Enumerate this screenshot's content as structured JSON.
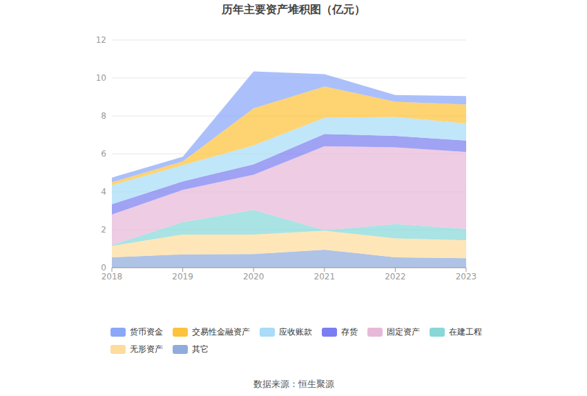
{
  "chart_data": {
    "type": "area",
    "title": "历年主要资产堆积图（亿元）",
    "source": "数据来源：恒生聚源",
    "stacked": true,
    "grid": true,
    "legend": "bottom",
    "categories": [
      "2018",
      "2019",
      "2020",
      "2021",
      "2022",
      "2023"
    ],
    "ylim": [
      0,
      12
    ],
    "yticks": [
      0,
      2,
      4,
      6,
      8,
      10,
      12
    ],
    "series": [
      {
        "name": "货币资金",
        "color": "#8aa8f8",
        "values": [
          0.25,
          0.25,
          1.95,
          0.65,
          0.35,
          0.45
        ]
      },
      {
        "name": "交易性金融资产",
        "color": "#fdc33c",
        "values": [
          0.15,
          0.2,
          1.95,
          1.65,
          0.8,
          1.0
        ]
      },
      {
        "name": "应收账款",
        "color": "#a8dcf8",
        "values": [
          1.0,
          0.85,
          1.0,
          0.85,
          1.0,
          0.9
        ]
      },
      {
        "name": "存货",
        "color": "#7b7ef0",
        "values": [
          0.55,
          0.45,
          0.55,
          0.65,
          0.6,
          0.6
        ]
      },
      {
        "name": "固定资产",
        "color": "#e8b8d8",
        "values": [
          1.6,
          1.7,
          1.85,
          4.43,
          4.05,
          4.05
        ]
      },
      {
        "name": "在建工程",
        "color": "#88d8d8",
        "values": [
          0.05,
          0.65,
          1.3,
          0.02,
          0.75,
          0.6
        ]
      },
      {
        "name": "无形资产",
        "color": "#fddc9c",
        "values": [
          0.6,
          1.05,
          1.03,
          1.0,
          1.0,
          0.95
        ]
      },
      {
        "name": "其它",
        "color": "#90acdc",
        "values": [
          0.55,
          0.7,
          0.72,
          0.95,
          0.55,
          0.5
        ]
      }
    ]
  }
}
